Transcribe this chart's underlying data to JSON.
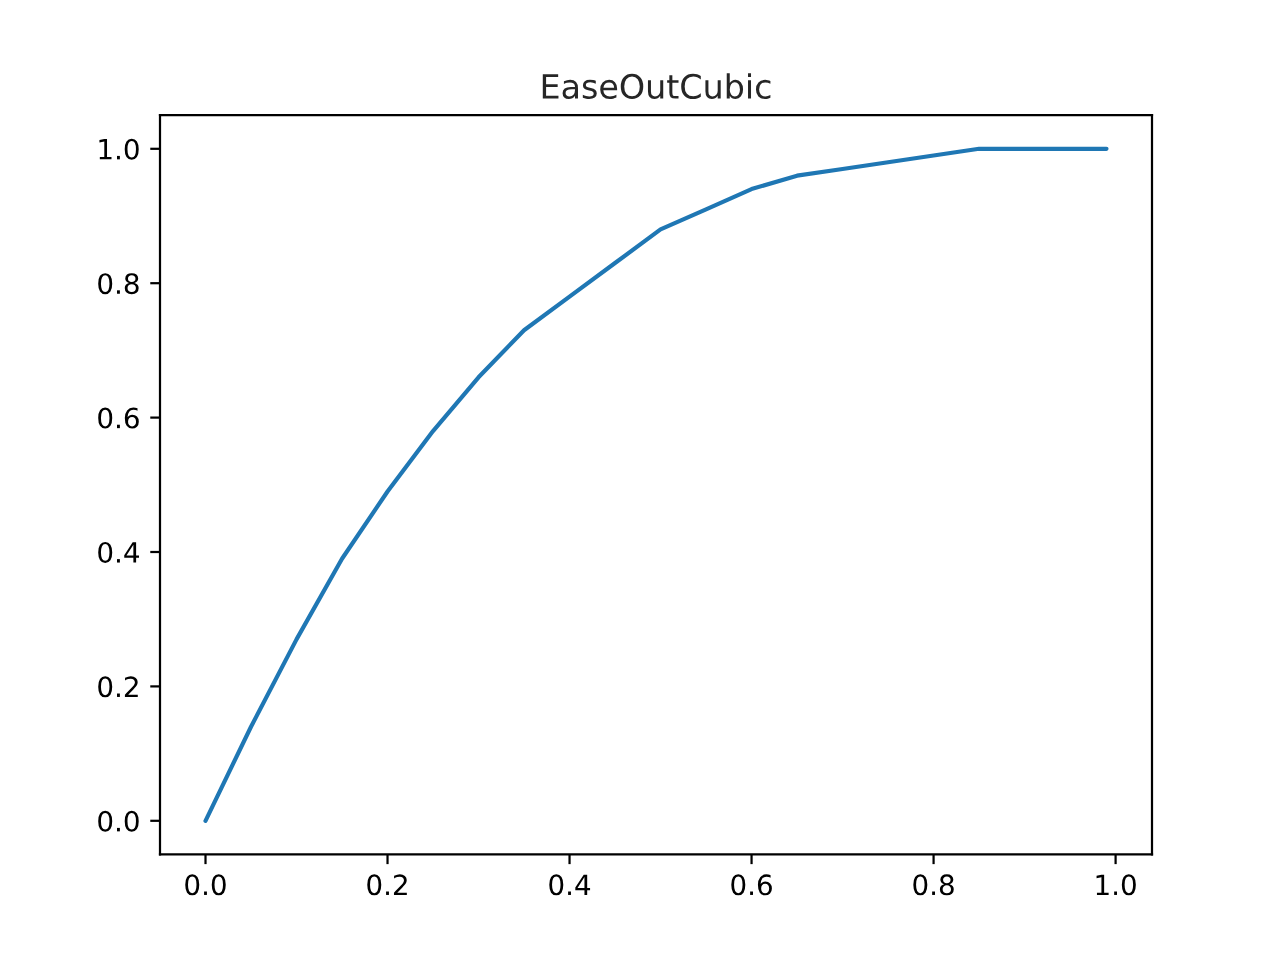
{
  "chart_data": {
    "type": "line",
    "title": "EaseOutCubic",
    "x": [
      0,
      0.05,
      0.1,
      0.15,
      0.2,
      0.25,
      0.3,
      0.35,
      0.4,
      0.45,
      0.5,
      0.55,
      0.6,
      0.65,
      0.7,
      0.75,
      0.8,
      0.85,
      0.9,
      0.95,
      0.99
    ],
    "series": [
      {
        "color": "#1f77b4",
        "values": [
          0,
          0.14,
          0.27,
          0.39,
          0.49,
          0.58,
          0.66,
          0.73,
          0.78,
          0.83,
          0.88,
          0.91,
          0.94,
          0.96,
          0.97,
          0.98,
          0.99,
          1.0,
          1.0,
          1.0,
          1.0
        ]
      }
    ],
    "xlim": [
      -0.05,
      1.04
    ],
    "ylim": [
      -0.05,
      1.05
    ],
    "xticks": [
      {
        "value": 0,
        "label": "0.0"
      },
      {
        "value": 0.2,
        "label": "0.2"
      },
      {
        "value": 0.4,
        "label": "0.4"
      },
      {
        "value": 0.6,
        "label": "0.6"
      },
      {
        "value": 0.8,
        "label": "0.8"
      },
      {
        "value": 1,
        "label": "1.0"
      }
    ],
    "yticks": [
      {
        "value": 0,
        "label": "0.0"
      },
      {
        "value": 0.2,
        "label": "0.2"
      },
      {
        "value": 0.4,
        "label": "0.4"
      },
      {
        "value": 0.6,
        "label": "0.6"
      },
      {
        "value": 0.8,
        "label": "0.8"
      },
      {
        "value": 1,
        "label": "1.0"
      }
    ],
    "grid": false,
    "legend": false,
    "line_style": "solid"
  }
}
